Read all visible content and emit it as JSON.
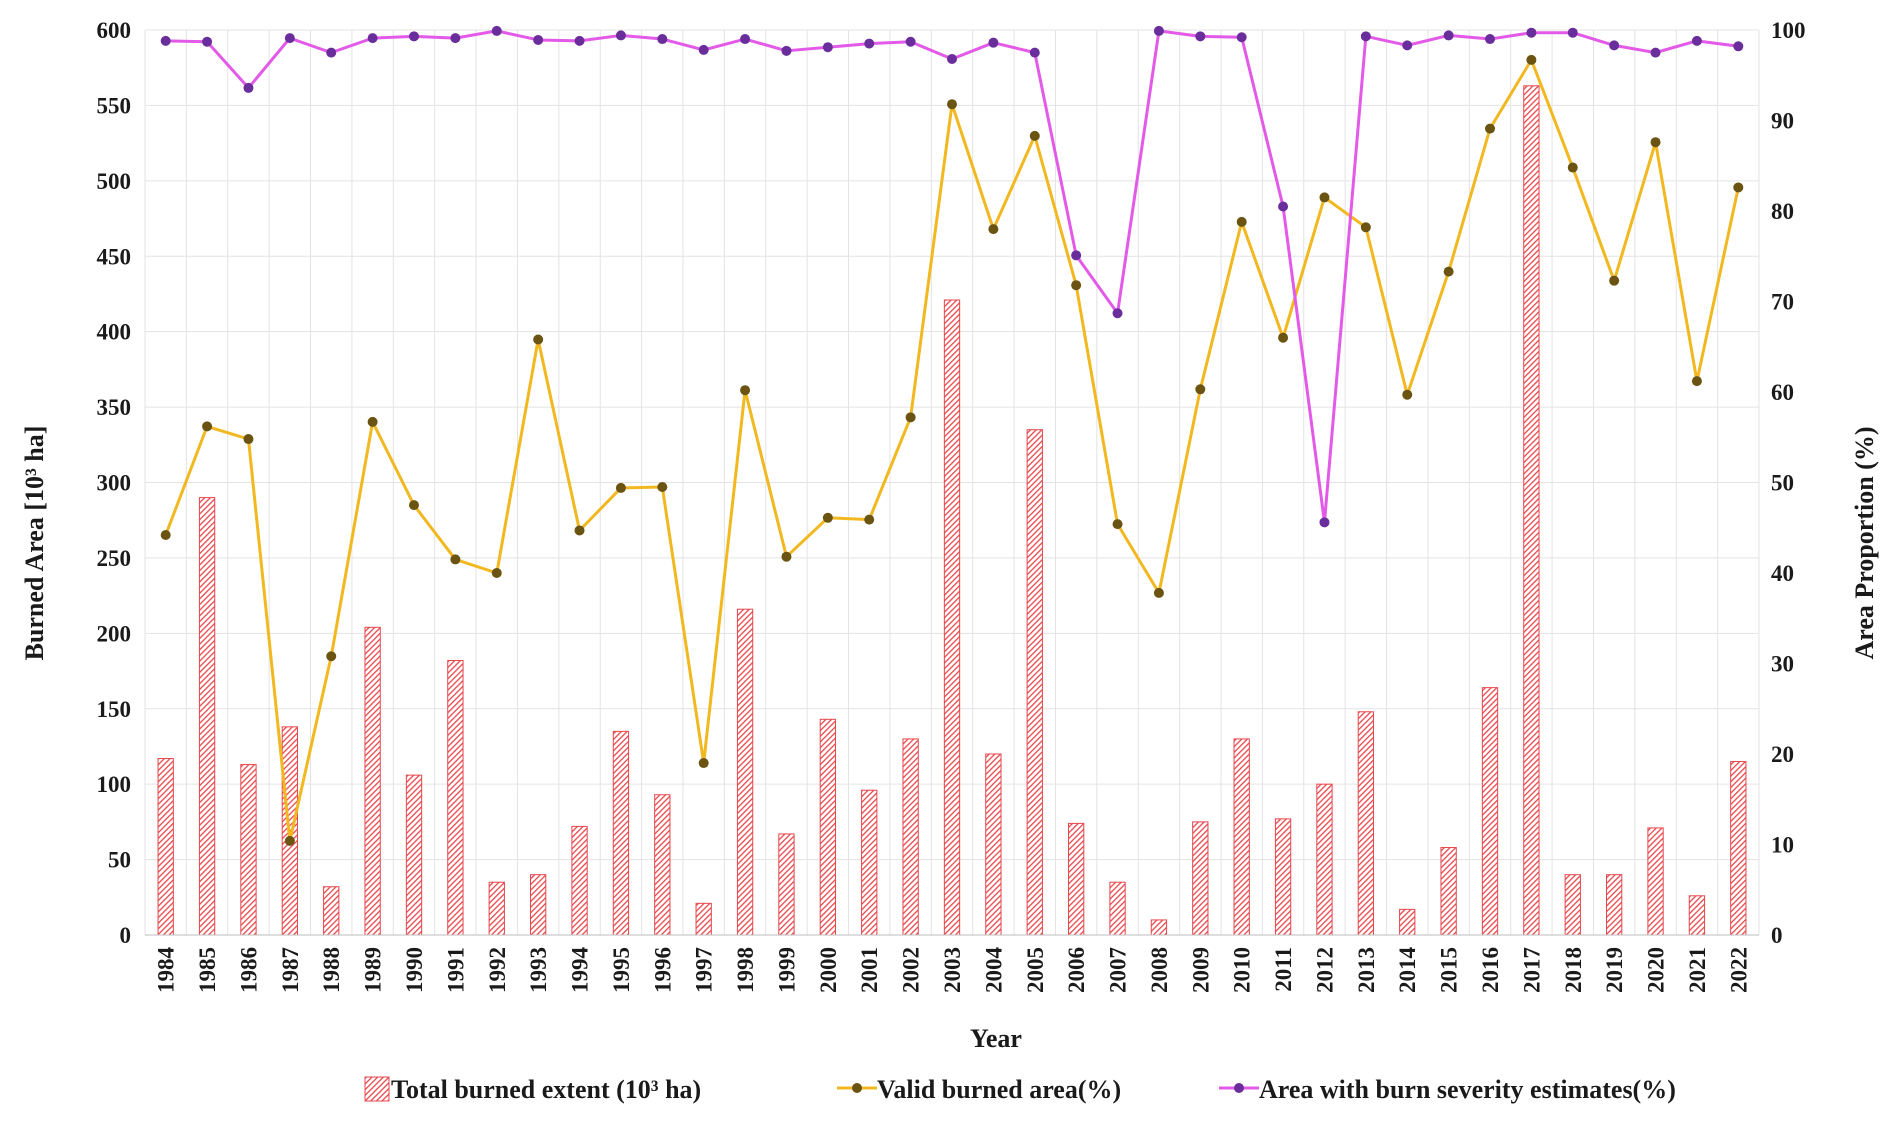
{
  "chart_data": {
    "type": "bar+line",
    "xlabel": "Year",
    "ylabel_left": "Burned Area [10³ ha]",
    "ylabel_right": "Area Proportion (%)",
    "ylim_left": [
      0,
      600
    ],
    "ylim_right": [
      0,
      100
    ],
    "yticks_left": [
      "0",
      "50",
      "100",
      "150",
      "200",
      "250",
      "300",
      "350",
      "400",
      "450",
      "500",
      "550",
      "600"
    ],
    "yticks_right": [
      "0",
      "10",
      "20",
      "30",
      "40",
      "50",
      "60",
      "70",
      "80",
      "90",
      "100"
    ],
    "grid": true,
    "legend_position": "bottom",
    "categories": [
      "1984",
      "1985",
      "1986",
      "1987",
      "1988",
      "1989",
      "1990",
      "1991",
      "1992",
      "1993",
      "1994",
      "1995",
      "1996",
      "1997",
      "1998",
      "1999",
      "2000",
      "2001",
      "2002",
      "2003",
      "2004",
      "2005",
      "2006",
      "2007",
      "2008",
      "2009",
      "2010",
      "2011",
      "2012",
      "2013",
      "2014",
      "2015",
      "2016",
      "2017",
      "2018",
      "2019",
      "2020",
      "2021",
      "2022"
    ],
    "series": [
      {
        "name": "Total burned extent (10³ ha)",
        "type": "bar",
        "axis": "left",
        "color": "#e8474c",
        "values": [
          117,
          290,
          113,
          138,
          32,
          204,
          106,
          182,
          35,
          40,
          72,
          135,
          93,
          21,
          216,
          67,
          143,
          96,
          130,
          421,
          120,
          335,
          74,
          35,
          10,
          75,
          130,
          77,
          100,
          148,
          17,
          58,
          164,
          563,
          40,
          40,
          71,
          26,
          115
        ]
      },
      {
        "name": "Valid burned area(%)",
        "type": "line",
        "axis": "right",
        "color": "#f2b820",
        "marker_color": "#6b5412",
        "values": [
          44.2,
          56.2,
          54.8,
          10.4,
          30.8,
          56.7,
          47.5,
          41.5,
          40,
          65.8,
          44.7,
          49.4,
          49.5,
          19,
          60.2,
          41.8,
          46.1,
          45.9,
          57.2,
          91.8,
          78,
          88.3,
          71.8,
          45.4,
          37.8,
          60.3,
          78.8,
          66,
          81.5,
          78.2,
          59.7,
          73.3,
          89.1,
          96.7,
          84.8,
          72.3,
          87.6,
          61.2,
          82.6
        ]
      },
      {
        "name": "Area with burn severity estimates(%)",
        "type": "line",
        "axis": "right",
        "color": "#e35ae8",
        "marker_color": "#6a2e9c",
        "values": [
          98.8,
          98.7,
          93.6,
          99.1,
          97.5,
          99.1,
          99.3,
          99.1,
          99.9,
          98.9,
          98.8,
          99.4,
          99,
          97.8,
          99,
          97.7,
          98.1,
          98.5,
          98.7,
          96.8,
          98.6,
          97.5,
          75.1,
          68.7,
          99.9,
          99.3,
          99.2,
          80.5,
          45.6,
          99.3,
          98.3,
          99.4,
          99,
          99.7,
          99.7,
          98.3,
          97.5,
          98.8,
          98.2
        ]
      }
    ]
  }
}
